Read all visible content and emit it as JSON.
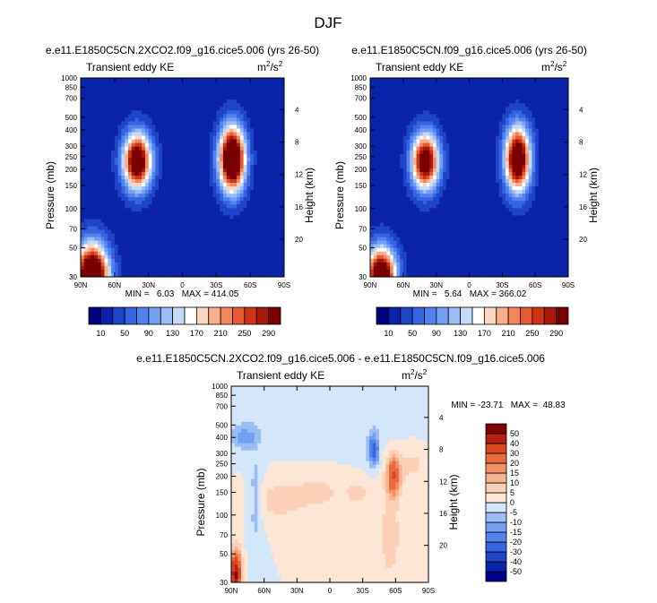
{
  "figure": {
    "title": "DJF"
  },
  "chart_data": [
    {
      "id": "left",
      "type": "heatmap",
      "title": "e.e11.E1850C5CN.2XCO2.f09_g16.cice5.006 (yrs 26-50)",
      "subtitle_left": "Transient eddy KE",
      "units_base": "m",
      "units_sup1": "2",
      "units_mid": "/s",
      "units_sup2": "2",
      "ylabel": "Pressure (mb)",
      "ylabel_right": "Height (km)",
      "xlim": [
        90,
        -90
      ],
      "ylim_pressure": [
        1000,
        30
      ],
      "xticks": [
        90,
        60,
        30,
        0,
        -30,
        -60,
        -90
      ],
      "xtick_labels": [
        "90N",
        "60N",
        "30N",
        "0",
        "30S",
        "60S",
        "90S"
      ],
      "yticks": [
        30,
        50,
        70,
        100,
        150,
        200,
        250,
        300,
        400,
        500,
        700,
        850,
        1000
      ],
      "ytick_labels": [
        "30",
        "50",
        "70",
        "100",
        "150",
        "200",
        "250",
        "300",
        "400",
        "500",
        "700",
        "850",
        "1000"
      ],
      "height_ticks": [
        20,
        16,
        12,
        8,
        4
      ],
      "height_tick_labels": [
        "20",
        "16",
        "12",
        "8",
        "4"
      ],
      "stats_text": "MIN =   6.03   MAX = 414.05",
      "min": 6.03,
      "max": 414.05,
      "colorbar": {
        "levels": [
          10,
          30,
          50,
          70,
          90,
          110,
          130,
          150,
          170,
          190,
          210,
          230,
          250,
          270,
          290
        ],
        "labels": [
          "10",
          "50",
          "90",
          "130",
          "170",
          "210",
          "250",
          "290"
        ],
        "colors": [
          "#000080",
          "#0a23a8",
          "#1f44c8",
          "#3663e0",
          "#5282ee",
          "#759ff2",
          "#9bbcf5",
          "#c4daf7",
          "#ffffff",
          "#fbd7c2",
          "#f8af8e",
          "#f2865f",
          "#e65a33",
          "#cf3417",
          "#a8170b",
          "#7a0000"
        ]
      },
      "features": [
        {
          "lat": 80,
          "p": 30,
          "amp": 420,
          "slat": 14,
          "slp": 0.55
        },
        {
          "lat": 40,
          "p": 230,
          "amp": 350,
          "slat": 12,
          "slp": 0.48
        },
        {
          "lat": -44,
          "p": 240,
          "amp": 410,
          "slat": 11,
          "slp": 0.55
        }
      ]
    },
    {
      "id": "right",
      "type": "heatmap",
      "title": "e.e11.E1850C5CN.f09_g16.cice5.006 (yrs 26-50)",
      "subtitle_left": "Transient eddy KE",
      "units_base": "m",
      "units_sup1": "2",
      "units_mid": "/s",
      "units_sup2": "2",
      "ylabel": "Pressure (mb)",
      "ylabel_right": "Height (km)",
      "xlim": [
        90,
        -90
      ],
      "ylim_pressure": [
        1000,
        30
      ],
      "xticks": [
        90,
        60,
        30,
        0,
        -30,
        -60,
        -90
      ],
      "xtick_labels": [
        "90N",
        "60N",
        "30N",
        "0",
        "30S",
        "60S",
        "90S"
      ],
      "yticks": [
        30,
        50,
        70,
        100,
        150,
        200,
        250,
        300,
        400,
        500,
        700,
        850,
        1000
      ],
      "ytick_labels": [
        "30",
        "50",
        "70",
        "100",
        "150",
        "200",
        "250",
        "300",
        "400",
        "500",
        "700",
        "850",
        "1000"
      ],
      "height_ticks": [
        20,
        16,
        12,
        8,
        4
      ],
      "height_tick_labels": [
        "20",
        "16",
        "12",
        "8",
        "4"
      ],
      "stats_text": "MIN =   5.64   MAX = 366.02",
      "min": 5.64,
      "max": 366.02,
      "colorbar": {
        "levels": [
          10,
          30,
          50,
          70,
          90,
          110,
          130,
          150,
          170,
          190,
          210,
          230,
          250,
          270,
          290
        ],
        "labels": [
          "10",
          "50",
          "90",
          "130",
          "170",
          "210",
          "250",
          "290"
        ],
        "colors": [
          "#000080",
          "#0a23a8",
          "#1f44c8",
          "#3663e0",
          "#5282ee",
          "#759ff2",
          "#9bbcf5",
          "#c4daf7",
          "#ffffff",
          "#fbd7c2",
          "#f8af8e",
          "#f2865f",
          "#e65a33",
          "#cf3417",
          "#a8170b",
          "#7a0000"
        ]
      },
      "features": [
        {
          "lat": 80,
          "p": 30,
          "amp": 370,
          "slat": 13,
          "slp": 0.5
        },
        {
          "lat": 40,
          "p": 230,
          "amp": 330,
          "slat": 12,
          "slp": 0.48
        },
        {
          "lat": -44,
          "p": 240,
          "amp": 365,
          "slat": 11,
          "slp": 0.55
        }
      ]
    },
    {
      "id": "diff",
      "type": "heatmap",
      "title": "e.e11.E1850C5CN.2XCO2.f09_g16.cice5.006 - e.e11.E1850C5CN.f09_g16.cice5.006",
      "subtitle_left": "Transient eddy KE",
      "units_base": "m",
      "units_sup1": "2",
      "units_mid": "/s",
      "units_sup2": "2",
      "ylabel": "Pressure (mb)",
      "ylabel_right": "Height (km)",
      "xlim": [
        90,
        -90
      ],
      "ylim_pressure": [
        1000,
        30
      ],
      "xticks": [
        90,
        60,
        30,
        0,
        -30,
        -60,
        -90
      ],
      "xtick_labels": [
        "90N",
        "60N",
        "30N",
        "0",
        "30S",
        "60S",
        "90S"
      ],
      "yticks": [
        30,
        50,
        70,
        100,
        150,
        200,
        250,
        300,
        400,
        500,
        700,
        850,
        1000
      ],
      "ytick_labels": [
        "30",
        "50",
        "70",
        "100",
        "150",
        "200",
        "250",
        "300",
        "400",
        "500",
        "700",
        "850",
        "1000"
      ],
      "height_ticks": [
        20,
        16,
        12,
        8,
        4
      ],
      "height_tick_labels": [
        "20",
        "16",
        "12",
        "8",
        "4"
      ],
      "stats_text": "MIN = -23.71   MAX =  48.83",
      "min": -23.71,
      "max": 48.83,
      "colorbar": {
        "levels": [
          -50,
          -40,
          -30,
          -20,
          -15,
          -10,
          -5,
          0,
          5,
          10,
          15,
          20,
          30,
          40,
          50
        ],
        "labels": [
          "-50",
          "-40",
          "-30",
          "-20",
          "-15",
          "-10",
          "-5",
          "0",
          "5",
          "10",
          "15",
          "20",
          "30",
          "40",
          "50"
        ],
        "colors": [
          "#00008a",
          "#0b23a8",
          "#1f44c8",
          "#3663e0",
          "#5282ee",
          "#759ff2",
          "#9bbcf5",
          "#d4e6f9",
          "#fde6d6",
          "#fbd0b6",
          "#f8b48f",
          "#f29068",
          "#e86a3e",
          "#d94620",
          "#b5210e",
          "#800000"
        ]
      },
      "features": [
        {
          "lat": 86,
          "p": 35,
          "amp": 52,
          "slat": 5,
          "slp": 0.38
        },
        {
          "lat": 68,
          "p": 130,
          "amp": -8,
          "slat": 6,
          "slp": 0.9
        },
        {
          "lat": 78,
          "p": 400,
          "amp": -12,
          "slat": 12,
          "slp": 0.2
        },
        {
          "lat": 45,
          "p": 130,
          "amp": 8,
          "slat": 22,
          "slp": 0.35
        },
        {
          "lat": 10,
          "p": 150,
          "amp": 7,
          "slat": 20,
          "slp": 0.3
        },
        {
          "lat": -25,
          "p": 150,
          "amp": 8,
          "slat": 10,
          "slp": 0.2
        },
        {
          "lat": -40,
          "p": 320,
          "amp": -24,
          "slat": 5,
          "slp": 0.28
        },
        {
          "lat": -58,
          "p": 200,
          "amp": 28,
          "slat": 6,
          "slp": 0.35
        },
        {
          "lat": -55,
          "p": 70,
          "amp": 8,
          "slat": 10,
          "slp": 0.9
        },
        {
          "lat": -75,
          "p": 250,
          "amp": 6,
          "slat": 15,
          "slp": 0.4
        }
      ]
    }
  ]
}
